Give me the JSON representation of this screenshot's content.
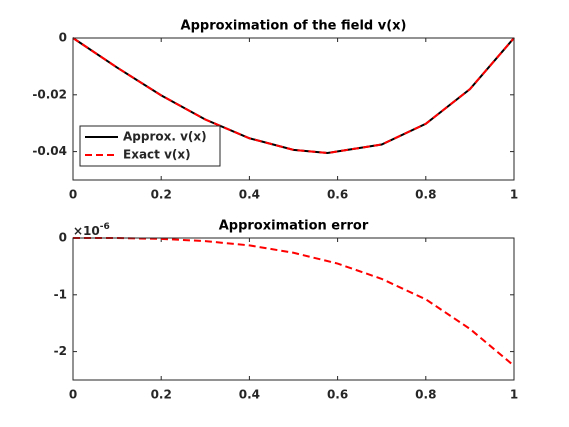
{
  "chart_data": [
    {
      "type": "line",
      "title": "Approximation of the field v(x)",
      "x": [
        0,
        0.1,
        0.2,
        0.3,
        0.4,
        0.5,
        0.577,
        0.7,
        0.8,
        0.9,
        1
      ],
      "series": [
        {
          "name": "Approx. v(x)",
          "color": "#000000",
          "dash": false,
          "values": [
            0,
            -0.0104,
            -0.0202,
            -0.0287,
            -0.0353,
            -0.0394,
            -0.0405,
            -0.0375,
            -0.0302,
            -0.018,
            0
          ]
        },
        {
          "name": "Exact v(x)",
          "color": "#ff0000",
          "dash": true,
          "values": [
            0,
            -0.0104,
            -0.0202,
            -0.0287,
            -0.0353,
            -0.0394,
            -0.0405,
            -0.0375,
            -0.0302,
            -0.018,
            0
          ]
        }
      ],
      "xlim": [
        0,
        1
      ],
      "ylim": [
        -0.05,
        0
      ],
      "xticks": [
        0,
        0.2,
        0.4,
        0.6,
        0.8,
        1
      ],
      "yticks": [
        -0.04,
        -0.02,
        0
      ],
      "legend": "lower left"
    },
    {
      "type": "line",
      "title": "Approximation error",
      "x": [
        0,
        0.1,
        0.2,
        0.3,
        0.4,
        0.5,
        0.6,
        0.7,
        0.8,
        0.9,
        1
      ],
      "series": [
        {
          "name": null,
          "color": "#ff0000",
          "dash": true,
          "values": [
            0,
            -0.001,
            -0.015,
            -0.055,
            -0.13,
            -0.26,
            -0.45,
            -0.72,
            -1.08,
            -1.6,
            -2.25
          ]
        }
      ],
      "xlim": [
        0,
        1
      ],
      "ylim": [
        -2.5,
        0
      ],
      "xticks": [
        0,
        0.2,
        0.4,
        0.6,
        0.8,
        1
      ],
      "yticks": [
        -2,
        -1,
        0
      ],
      "y_multiplier_label": "×10",
      "y_multiplier_exponent": "-6"
    }
  ]
}
